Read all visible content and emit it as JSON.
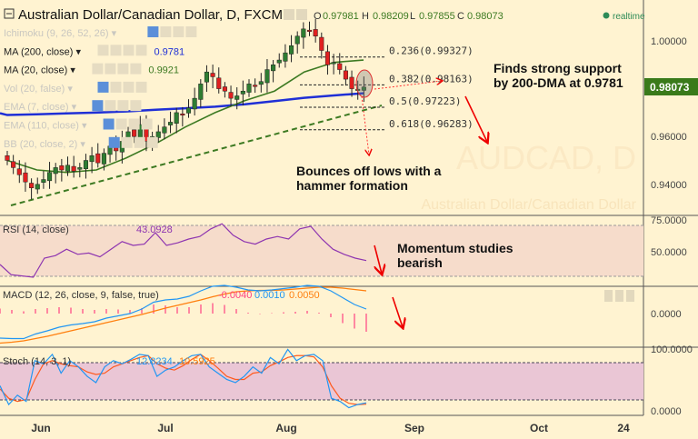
{
  "header": {
    "title": "Australian Dollar/Canadian Dollar, D, FXCM",
    "ohlc": {
      "o_label": "O",
      "o": "0.97981",
      "h_label": "H",
      "h": "0.98209",
      "l_label": "L",
      "l": "0.97855",
      "c_label": "C",
      "c": "0.98073"
    },
    "status": "realtime"
  },
  "watermark": {
    "symbol": "AUDCAD, D",
    "name": "Australian Dollar/Canadian Dollar"
  },
  "indicators": [
    {
      "label": "Ichimoku (9, 26, 52, 26)",
      "value": ""
    },
    {
      "label": "MA (200, close)",
      "value": "0.9781"
    },
    {
      "label": "MA (20, close)",
      "value": "0.9921"
    },
    {
      "label": "Vol (20, false)",
      "value": ""
    },
    {
      "label": "EMA (7, close)",
      "value": ""
    },
    {
      "label": "EMA (110, close)",
      "value": ""
    },
    {
      "label": "BB (20, close, 2)",
      "value": ""
    }
  ],
  "price_axis": {
    "ticks": [
      "1.00000",
      "0.96000",
      "0.94000"
    ],
    "current_price": "0.98073"
  },
  "fib_levels": [
    {
      "label": "0.236(0.99327)",
      "price": 0.99327
    },
    {
      "label": "0.382(0.98163)",
      "price": 0.98163
    },
    {
      "label": "0.5(0.97223)",
      "price": 0.97223
    },
    {
      "label": "0.618(0.96283)",
      "price": 0.96283
    }
  ],
  "annotations": {
    "support": [
      "Finds strong support",
      "by 200-DMA at 0.9781"
    ],
    "hammer": [
      "Bounces off lows with a",
      "hammer formation"
    ],
    "momentum": [
      "Momentum studies",
      "bearish"
    ]
  },
  "rsi": {
    "label": "RSI (14, close)",
    "value": "43.0928",
    "ticks": [
      "75.0000",
      "50.0000"
    ]
  },
  "macd": {
    "label": "MACD (12, 26, close, 9, false, true)",
    "hist": "-0.0040",
    "macd": "0.0010",
    "signal": "0.0050",
    "ticks": [
      "0.0000"
    ]
  },
  "stoch": {
    "label": "Stoch (14, 3, 1)",
    "k": "12.8234",
    "d": "10.5925",
    "ticks": [
      "100.0000",
      "0.0000"
    ]
  },
  "time_axis": {
    "ticks": [
      "Jun",
      "Jul",
      "Aug",
      "Sep",
      "Oct",
      "24"
    ]
  },
  "colors": {
    "up": "#2e7d32",
    "down": "#e02020",
    "ma200": "#1f2fd6",
    "ma20": "#3d7a22",
    "rsi": "#8e35b0",
    "macd": "#2196f3",
    "signal": "#ff7f0e",
    "hist": "#ff4081",
    "accent": "#3a7a1a"
  },
  "chart_data": [
    {
      "type": "candlestick",
      "title": "Australian Dollar/Canadian Dollar, D, FXCM",
      "ylim": [
        0.93,
        1.015
      ],
      "closes": [
        0.95,
        0.947,
        0.944,
        0.941,
        0.9385,
        0.94,
        0.942,
        0.945,
        0.947,
        0.946,
        0.948,
        0.9455,
        0.947,
        0.95,
        0.952,
        0.949,
        0.953,
        0.956,
        0.954,
        0.958,
        0.962,
        0.96,
        0.965,
        0.958,
        0.96,
        0.962,
        0.964,
        0.966,
        0.97,
        0.969,
        0.972,
        0.976,
        0.982,
        0.987,
        0.985,
        0.98,
        0.979,
        0.976,
        0.977,
        0.979,
        0.982,
        0.981,
        0.983,
        0.988,
        0.99,
        0.992,
        0.995,
        0.998,
        1.002,
        1.005,
        1.004,
        1.002,
        0.996,
        0.99,
        0.991,
        0.988,
        0.984,
        0.98,
        0.9798,
        0.98073
      ],
      "series": [
        {
          "name": "MA (200, close)",
          "values": [
            0.969,
            0.9693,
            0.9697,
            0.97,
            0.9705,
            0.9712,
            0.9718,
            0.9725,
            0.9735,
            0.9748,
            0.9762,
            0.9772,
            0.9781
          ]
        },
        {
          "name": "MA (20, close)",
          "values": [
            0.95,
            0.946,
            0.945,
            0.946,
            0.951,
            0.957,
            0.964,
            0.97,
            0.975,
            0.979,
            0.987,
            0.991,
            0.992
          ]
        }
      ]
    },
    {
      "type": "line",
      "title": "RSI (14, close)",
      "ylim": [
        20,
        80
      ],
      "bands": [
        70,
        30
      ],
      "values": [
        40,
        32,
        31,
        30,
        45,
        47,
        52,
        48,
        49,
        46,
        52,
        58,
        55,
        56,
        65,
        55,
        57,
        60,
        62,
        68,
        72,
        63,
        58,
        56,
        60,
        62,
        60,
        68,
        70,
        60,
        52,
        48,
        45,
        43.09
      ]
    },
    {
      "type": "line",
      "title": "MACD (12, 26, close, 9, false, true)",
      "series": [
        {
          "name": "macd",
          "values": [
            -0.0054,
            -0.0055,
            -0.0055,
            -0.0045,
            -0.0038,
            -0.003,
            -0.0025,
            -0.0022,
            -0.0018,
            -0.001,
            -0.0005,
            0.0,
            0.001,
            0.0025,
            0.003,
            0.0032,
            0.0038,
            0.005,
            0.006,
            0.0062,
            0.0058,
            0.0052,
            0.005,
            0.0052,
            0.0055,
            0.0058,
            0.0062,
            0.006,
            0.005,
            0.0035,
            0.002,
            0.001
          ]
        },
        {
          "name": "signal",
          "values": [
            -0.0065,
            -0.0063,
            -0.006,
            -0.0055,
            -0.005,
            -0.0044,
            -0.0038,
            -0.0032,
            -0.0026,
            -0.002,
            -0.0014,
            -0.0008,
            -0.0002,
            0.0005,
            0.0012,
            0.0018,
            0.0024,
            0.003,
            0.0037,
            0.0043,
            0.0048,
            0.005,
            0.0051,
            0.0051,
            0.0052,
            0.0054,
            0.0056,
            0.0058,
            0.0058,
            0.0056,
            0.0053,
            0.005
          ]
        }
      ]
    },
    {
      "type": "line",
      "title": "Stoch (14, 3, 1)",
      "ylim": [
        0,
        100
      ],
      "bands": [
        80,
        20
      ],
      "series": [
        {
          "name": "K",
          "values": [
            40,
            10,
            25,
            15,
            80,
            75,
            90,
            60,
            80,
            70,
            55,
            45,
            70,
            80,
            75,
            82,
            90,
            88,
            55,
            65,
            70,
            80,
            88,
            90,
            70,
            60,
            50,
            45,
            55,
            70,
            60,
            85,
            75,
            98,
            80,
            88,
            90,
            80,
            20,
            15,
            5,
            10,
            12.8
          ]
        },
        {
          "name": "D",
          "values": [
            35,
            20,
            15,
            18,
            50,
            75,
            80,
            75,
            72,
            70,
            62,
            58,
            60,
            70,
            75,
            80,
            85,
            88,
            75,
            68,
            65,
            72,
            82,
            90,
            80,
            68,
            55,
            50,
            50,
            60,
            62,
            72,
            78,
            85,
            88,
            88,
            86,
            70,
            40,
            20,
            12,
            10,
            10.6
          ]
        }
      ]
    }
  ]
}
